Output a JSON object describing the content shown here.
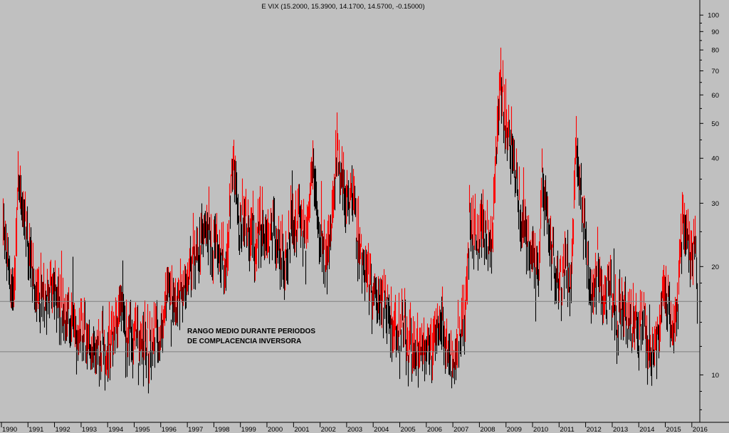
{
  "colors": {
    "background": "#c0c0c0",
    "up_bar": "#ff0000",
    "down_bar": "#000000",
    "band_line": "#808080",
    "axis": "#000000",
    "text": "#000000"
  },
  "chart_data": {
    "type": "line",
    "title": "E VIX (15.2000, 15.3900, 14.1700, 14.5700, -0.15000)",
    "xlabel": "",
    "ylabel": "",
    "y_scale": "log",
    "ylim": [
      7,
      110
    ],
    "xlim": [
      "1990-01-01",
      "2016-03-31"
    ],
    "grid": false,
    "y_ticks": [
      10,
      20,
      30,
      40,
      50,
      60,
      70,
      80,
      90,
      100
    ],
    "x_ticks": [
      "1990",
      "1991",
      "1992",
      "1993",
      "1994",
      "1995",
      "1996",
      "1997",
      "1998",
      "1999",
      "2000",
      "2001",
      "2002",
      "2003",
      "2004",
      "2005",
      "2006",
      "2007",
      "2008",
      "2009",
      "2010",
      "2011",
      "2012",
      "2013",
      "2014",
      "2015",
      "2016"
    ],
    "annotation": "RANGO MEDIO DURANTE PERIODOS\nDE COMPLACENCIA INVERSORA",
    "band": [
      11.6,
      16.0
    ],
    "series": [
      {
        "values": [
          [
            "1990-01",
            26
          ],
          [
            "1990-03",
            21
          ],
          [
            "1990-06",
            16
          ],
          [
            "1990-08",
            35
          ],
          [
            "1990-10",
            30
          ],
          [
            "1990-12",
            24
          ],
          [
            "1991-02",
            18
          ],
          [
            "1991-05",
            17
          ],
          [
            "1991-08",
            16
          ],
          [
            "1991-11",
            18
          ],
          [
            "1992-02",
            16
          ],
          [
            "1992-06",
            14
          ],
          [
            "1992-09",
            12
          ],
          [
            "1992-12",
            13
          ],
          [
            "1993-03",
            12.5
          ],
          [
            "1993-06",
            12
          ],
          [
            "1993-09",
            11.5
          ],
          [
            "1993-12",
            11.5
          ],
          [
            "1994-03",
            12.5
          ],
          [
            "1994-06",
            16
          ],
          [
            "1994-09",
            13
          ],
          [
            "1994-12",
            13
          ],
          [
            "1995-03",
            12.5
          ],
          [
            "1995-06",
            12
          ],
          [
            "1995-09",
            13
          ],
          [
            "1995-12",
            12
          ],
          [
            "1996-03",
            16
          ],
          [
            "1996-06",
            15
          ],
          [
            "1996-09",
            17
          ],
          [
            "1996-12",
            18
          ],
          [
            "1997-03",
            20
          ],
          [
            "1997-06",
            22
          ],
          [
            "1997-09",
            26
          ],
          [
            "1997-12",
            23
          ],
          [
            "1998-03",
            21
          ],
          [
            "1998-06",
            20
          ],
          [
            "1998-09",
            40
          ],
          [
            "1998-12",
            27
          ],
          [
            "1999-03",
            26
          ],
          [
            "1999-06",
            24
          ],
          [
            "1999-09",
            25
          ],
          [
            "1999-12",
            23
          ],
          [
            "2000-03",
            25
          ],
          [
            "2000-06",
            22
          ],
          [
            "2000-09",
            20
          ],
          [
            "2000-12",
            26
          ],
          [
            "2001-03",
            28
          ],
          [
            "2001-06",
            22
          ],
          [
            "2001-09",
            38
          ],
          [
            "2001-12",
            24
          ],
          [
            "2002-03",
            20
          ],
          [
            "2002-06",
            26
          ],
          [
            "2002-08",
            42
          ],
          [
            "2002-12",
            30
          ],
          [
            "2003-03",
            32
          ],
          [
            "2003-06",
            22
          ],
          [
            "2003-09",
            20
          ],
          [
            "2003-12",
            17
          ],
          [
            "2004-03",
            16
          ],
          [
            "2004-06",
            15
          ],
          [
            "2004-09",
            14
          ],
          [
            "2004-12",
            13
          ],
          [
            "2005-03",
            13
          ],
          [
            "2005-06",
            12
          ],
          [
            "2005-09",
            12
          ],
          [
            "2005-12",
            11.5
          ],
          [
            "2006-03",
            11.5
          ],
          [
            "2006-06",
            15
          ],
          [
            "2006-09",
            12
          ],
          [
            "2006-12",
            10.5
          ],
          [
            "2007-03",
            13
          ],
          [
            "2007-06",
            15
          ],
          [
            "2007-08",
            25
          ],
          [
            "2007-12",
            23
          ],
          [
            "2008-03",
            26
          ],
          [
            "2008-06",
            23
          ],
          [
            "2008-10",
            70
          ],
          [
            "2008-12",
            50
          ],
          [
            "2009-03",
            45
          ],
          [
            "2009-06",
            30
          ],
          [
            "2009-09",
            25
          ],
          [
            "2009-12",
            21
          ],
          [
            "2010-03",
            18
          ],
          [
            "2010-05",
            35
          ],
          [
            "2010-09",
            23
          ],
          [
            "2010-12",
            17
          ],
          [
            "2011-03",
            19
          ],
          [
            "2011-06",
            18
          ],
          [
            "2011-08",
            42
          ],
          [
            "2011-12",
            25
          ],
          [
            "2012-03",
            16
          ],
          [
            "2012-06",
            20
          ],
          [
            "2012-09",
            16
          ],
          [
            "2012-12",
            17
          ],
          [
            "2013-03",
            13
          ],
          [
            "2013-06",
            16
          ],
          [
            "2013-09",
            14
          ],
          [
            "2013-12",
            13.5
          ],
          [
            "2014-03",
            14
          ],
          [
            "2014-06",
            11.5
          ],
          [
            "2014-09",
            13
          ],
          [
            "2014-12",
            17
          ],
          [
            "2015-03",
            15
          ],
          [
            "2015-06",
            13.5
          ],
          [
            "2015-08",
            28
          ],
          [
            "2015-12",
            20
          ],
          [
            "2016-02",
            24
          ],
          [
            "2016-03",
            14.57
          ]
        ]
      }
    ]
  }
}
